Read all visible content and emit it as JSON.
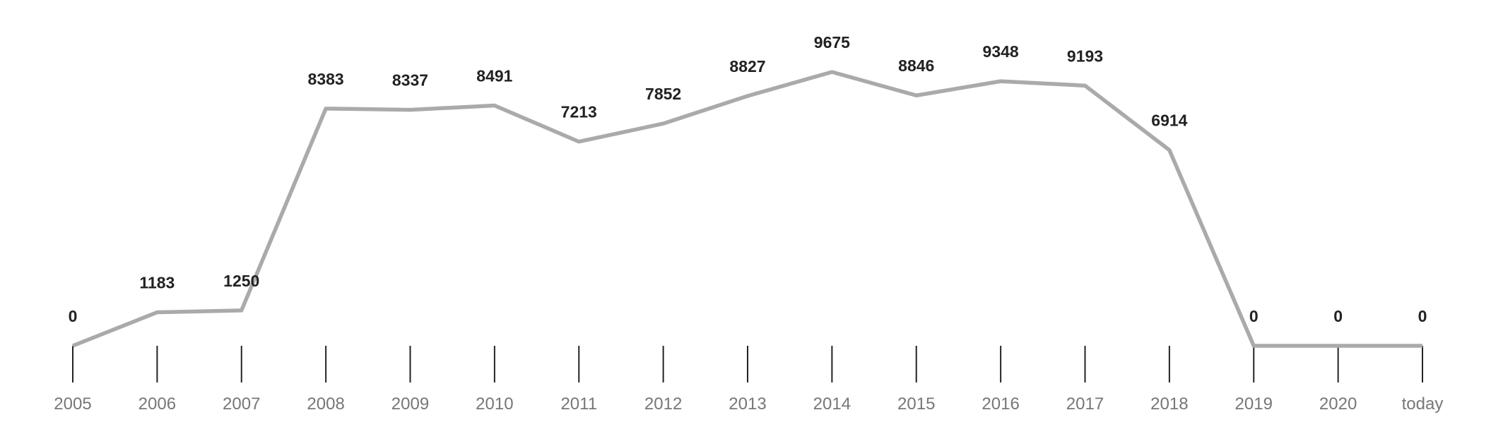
{
  "chart_data": {
    "type": "line",
    "categories": [
      "2005",
      "2006",
      "2007",
      "2008",
      "2009",
      "2010",
      "2011",
      "2012",
      "2013",
      "2014",
      "2015",
      "2016",
      "2017",
      "2018",
      "2019",
      "2020",
      "today"
    ],
    "series": [
      {
        "color": "#aaaaaa",
        "values": [
          0,
          1183,
          1250,
          8383,
          8337,
          8491,
          7213,
          7852,
          8827,
          9675,
          8846,
          9348,
          9193,
          6914,
          0,
          0,
          0
        ]
      }
    ]
  }
}
